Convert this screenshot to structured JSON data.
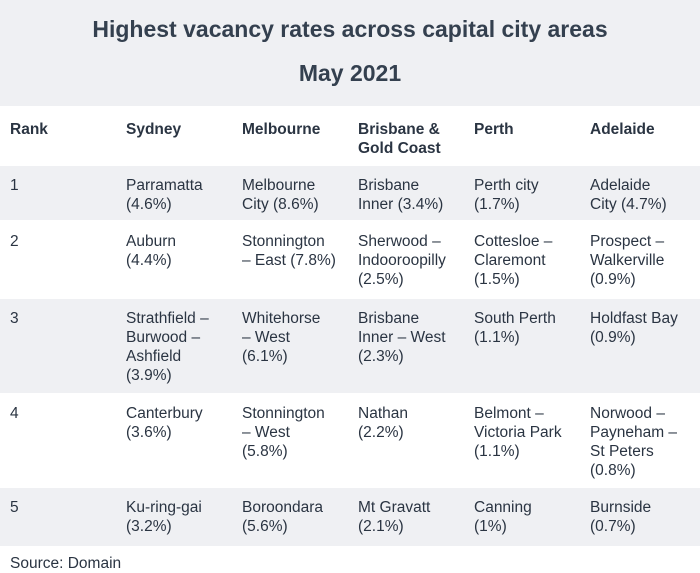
{
  "title": "Highest vacancy rates across capital city areas",
  "subtitle": "May 2021",
  "columns": [
    "Rank",
    "Sydney",
    "Melbourne",
    "Brisbane &\nGold Coast",
    "Perth",
    "Adelaide"
  ],
  "rows": [
    [
      "1",
      "Parramatta\n(4.6%)",
      "Melbourne\nCity (8.6%)",
      " Brisbane\nInner (3.4%)",
      "Perth city\n(1.7%)",
      " Adelaide\nCity (4.7%)"
    ],
    [
      "2",
      " Auburn\n(4.4%)",
      "Stonnington\n– East (7.8%)",
      "Sherwood –\nIndooroopilly\n(2.5%)",
      "Cottesloe –\nClaremont\n(1.5%)",
      "Prospect –\nWalkerville\n(0.9%)"
    ],
    [
      "3",
      " Strathfield –\nBurwood –\nAshfield\n(3.9%)",
      "Whitehorse\n– West\n(6.1%)",
      "Brisbane\nInner – West\n(2.3%)",
      "South Perth\n(1.1%)",
      "Holdfast Bay\n(0.9%)"
    ],
    [
      "4",
      " Canterbury\n(3.6%)",
      " Stonnington\n– West\n(5.8%)",
      "Nathan\n(2.2%)",
      "Belmont –\nVictoria Park\n(1.1%)",
      "Norwood –\nPayneham –\nSt Peters\n(0.8%)"
    ],
    [
      "5",
      " Ku-ring-gai\n(3.2%)",
      " Boroondara\n(5.6%)",
      " Mt Gravatt\n(2.1%)",
      " Canning\n(1%)",
      " Burnside\n(0.7%)"
    ]
  ],
  "source": "Source: Domain"
}
